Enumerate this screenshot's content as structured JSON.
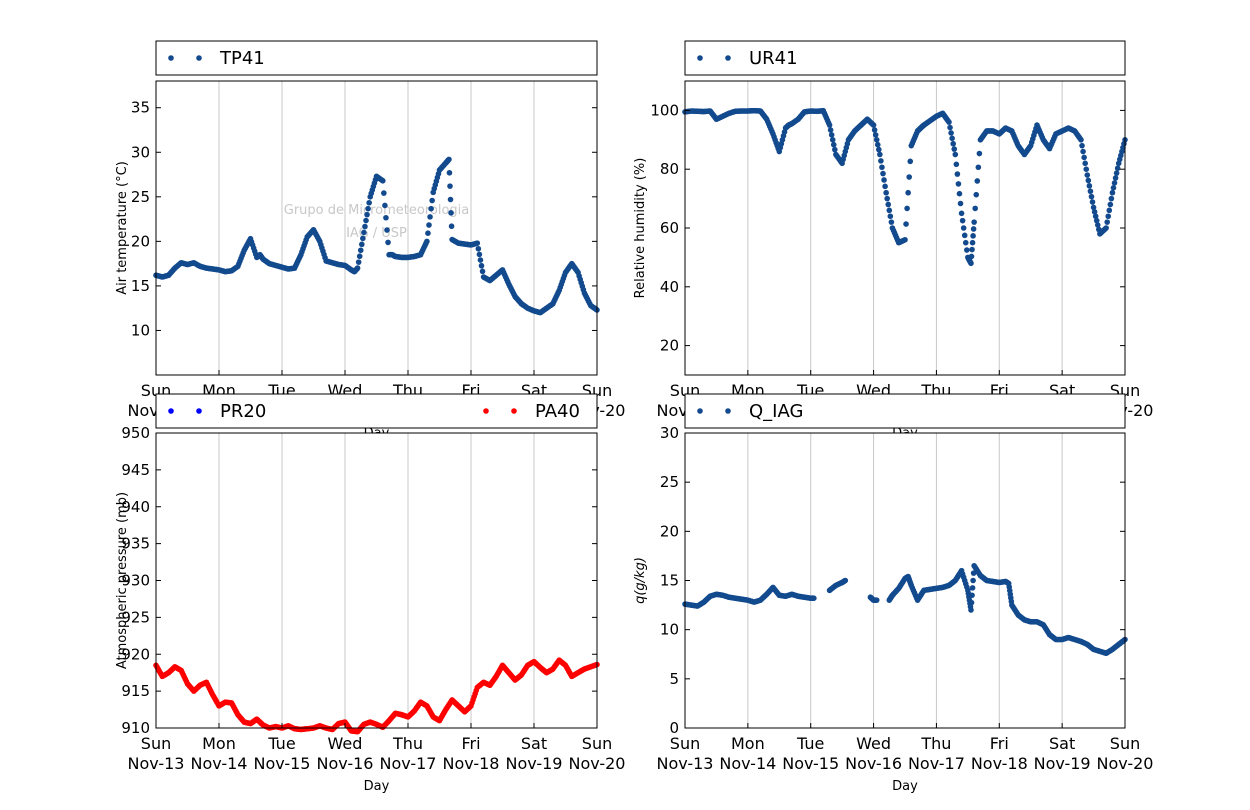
{
  "days": [
    "Sun",
    "Mon",
    "Tue",
    "Wed",
    "Thu",
    "Fri",
    "Sat",
    "Sun"
  ],
  "dates": [
    "Nov-13",
    "Nov-14",
    "Nov-15",
    "Nov-16",
    "Nov-17",
    "Nov-18",
    "Nov-19",
    "Nov-20"
  ],
  "xlabel": "Day",
  "watermark": [
    "Grupo de Micrometeorologia",
    "IAG / USP"
  ],
  "colors": {
    "blue_series": "#134a8e",
    "pr20": "#0000ff",
    "pa40": "#ff0000",
    "grid": "#c8c8c8"
  },
  "chart_data": [
    {
      "type": "scatter",
      "legend": [
        "TP41"
      ],
      "ylabel": "Air temperature (°C)",
      "yticks": [
        10,
        15,
        20,
        25,
        30,
        35
      ],
      "ylim": [
        5,
        38
      ],
      "xlim": [
        "2016-11-13",
        "2016-11-20"
      ],
      "series": [
        {
          "name": "TP41",
          "color": "#134a8e",
          "x": [
            0,
            0.1,
            0.2,
            0.3,
            0.4,
            0.5,
            0.6,
            0.7,
            0.8,
            0.9,
            1.0,
            1.1,
            1.2,
            1.3,
            1.4,
            1.5,
            1.6,
            1.65,
            1.7,
            1.8,
            1.9,
            2.0,
            2.1,
            2.2,
            2.3,
            2.4,
            2.5,
            2.6,
            2.7,
            2.8,
            2.9,
            3.0,
            3.1,
            3.15,
            3.2,
            3.3,
            3.4,
            3.5,
            3.6,
            3.7,
            3.75,
            3.8,
            3.9,
            4.0,
            4.1,
            4.2,
            4.3,
            4.4,
            4.5,
            4.6,
            4.65,
            4.7,
            4.8,
            4.9,
            5.0,
            5.1,
            5.2,
            5.3,
            5.4,
            5.5,
            5.6,
            5.7,
            5.8,
            5.9,
            6.0,
            6.1,
            6.2,
            6.3,
            6.4,
            6.5,
            6.6,
            6.7,
            6.8,
            6.9,
            7.0
          ],
          "y": [
            16.2,
            16.0,
            16.2,
            17.0,
            17.6,
            17.4,
            17.6,
            17.2,
            17.0,
            16.9,
            16.8,
            16.6,
            16.7,
            17.2,
            19.0,
            20.3,
            18.2,
            18.5,
            18.0,
            17.5,
            17.3,
            17.1,
            16.9,
            17.0,
            18.5,
            20.5,
            21.3,
            20.0,
            17.8,
            17.6,
            17.4,
            17.3,
            16.8,
            16.6,
            17.0,
            21.0,
            25.0,
            27.3,
            26.8,
            18.5,
            18.5,
            18.3,
            18.2,
            18.2,
            18.3,
            18.5,
            20.0,
            25.5,
            28.0,
            28.8,
            29.2,
            20.2,
            19.8,
            19.7,
            19.6,
            19.8,
            16.0,
            15.6,
            16.2,
            16.8,
            15.2,
            13.8,
            13.0,
            12.5,
            12.2,
            12.0,
            12.5,
            13.0,
            14.5,
            16.5,
            17.5,
            16.5,
            14.2,
            12.8,
            12.3
          ]
        }
      ]
    },
    {
      "type": "scatter",
      "legend": [
        "UR41"
      ],
      "ylabel": "Relative humidity (%)",
      "yticks": [
        20,
        40,
        60,
        80,
        100
      ],
      "ylim": [
        10,
        110
      ],
      "xlim": [
        "2016-11-13",
        "2016-11-20"
      ],
      "series": [
        {
          "name": "UR41",
          "color": "#134a8e",
          "x": [
            0,
            0.1,
            0.2,
            0.3,
            0.4,
            0.5,
            0.6,
            0.7,
            0.8,
            0.9,
            1.0,
            1.1,
            1.2,
            1.3,
            1.4,
            1.5,
            1.6,
            1.65,
            1.7,
            1.8,
            1.9,
            2.0,
            2.1,
            2.2,
            2.3,
            2.4,
            2.5,
            2.6,
            2.7,
            2.8,
            2.9,
            3.0,
            3.1,
            3.2,
            3.3,
            3.4,
            3.5,
            3.6,
            3.7,
            3.75,
            3.8,
            3.9,
            4.0,
            4.1,
            4.2,
            4.3,
            4.4,
            4.5,
            4.55,
            4.6,
            4.7,
            4.8,
            4.9,
            5.0,
            5.1,
            5.2,
            5.3,
            5.4,
            5.5,
            5.6,
            5.7,
            5.8,
            5.9,
            6.0,
            6.1,
            6.2,
            6.3,
            6.4,
            6.5,
            6.6,
            6.7,
            6.8,
            6.9,
            7.0
          ],
          "y": [
            99.5,
            99.8,
            99.7,
            99.6,
            99.8,
            97.0,
            98.0,
            99.0,
            99.7,
            99.8,
            99.8,
            99.9,
            99.8,
            97.0,
            92.0,
            86.0,
            94.0,
            95.0,
            95.5,
            97.0,
            99.5,
            99.8,
            99.7,
            99.9,
            95.0,
            85.0,
            82.0,
            90.0,
            93.0,
            95.0,
            97.0,
            95.0,
            85.0,
            72.0,
            60.0,
            55.0,
            56.0,
            88.0,
            93.0,
            94.0,
            95.0,
            96.5,
            98.0,
            99.0,
            96.0,
            85.0,
            65.0,
            50.0,
            48.0,
            62.0,
            90.0,
            93.0,
            93.0,
            92.0,
            94.0,
            93.0,
            88.0,
            85.0,
            88.0,
            95.0,
            90.0,
            87.0,
            92.0,
            93.0,
            94.0,
            93.0,
            90.0,
            78.0,
            67.0,
            58.0,
            60.0,
            72.0,
            82.0,
            90.0
          ]
        }
      ]
    },
    {
      "type": "scatter",
      "legend": [
        "PR20",
        "PA40"
      ],
      "ylabel": "Atmospheric pressure (mb)",
      "yticks": [
        910,
        915,
        920,
        925,
        930,
        935,
        940,
        945,
        950
      ],
      "ylim": [
        910,
        950
      ],
      "xlim": [
        "2016-11-13",
        "2016-11-20"
      ],
      "series": [
        {
          "name": "PR20",
          "color": "#0000ff",
          "x": [],
          "y": []
        },
        {
          "name": "PA40",
          "color": "#ff0000",
          "x": [
            0,
            0.1,
            0.2,
            0.3,
            0.4,
            0.5,
            0.6,
            0.7,
            0.8,
            0.9,
            1.0,
            1.1,
            1.2,
            1.3,
            1.4,
            1.5,
            1.6,
            1.7,
            1.8,
            1.9,
            2.0,
            2.1,
            2.2,
            2.3,
            2.4,
            2.5,
            2.6,
            2.7,
            2.8,
            2.9,
            3.0,
            3.1,
            3.2,
            3.3,
            3.4,
            3.5,
            3.6,
            3.7,
            3.8,
            3.9,
            4.0,
            4.1,
            4.2,
            4.3,
            4.4,
            4.5,
            4.6,
            4.7,
            4.8,
            4.9,
            5.0,
            5.1,
            5.2,
            5.3,
            5.4,
            5.5,
            5.6,
            5.7,
            5.8,
            5.9,
            6.0,
            6.1,
            6.2,
            6.3,
            6.4,
            6.5,
            6.6,
            6.7,
            6.8,
            6.9,
            7.0
          ],
          "y": [
            918.5,
            917.0,
            917.5,
            918.3,
            917.8,
            916.0,
            915.0,
            915.8,
            916.2,
            914.5,
            913.0,
            913.5,
            913.4,
            911.8,
            910.8,
            910.6,
            911.2,
            910.4,
            910.0,
            910.2,
            910.0,
            910.3,
            909.9,
            909.8,
            909.9,
            910.0,
            910.3,
            910.0,
            909.8,
            910.6,
            910.8,
            909.6,
            909.5,
            910.5,
            910.8,
            910.5,
            910.1,
            911.0,
            912.0,
            911.8,
            911.5,
            912.3,
            913.5,
            913.0,
            911.5,
            911.0,
            912.5,
            913.8,
            913.0,
            912.2,
            913.0,
            915.5,
            916.2,
            915.8,
            917.0,
            918.5,
            917.5,
            916.5,
            917.2,
            918.5,
            919.0,
            918.2,
            917.5,
            918.0,
            919.2,
            918.5,
            917.0,
            917.5,
            918.0,
            918.3,
            918.6
          ]
        }
      ]
    },
    {
      "type": "scatter",
      "legend": [
        "Q_IAG"
      ],
      "ylabel": "q(g/kg)",
      "yticks": [
        0,
        5,
        10,
        15,
        20,
        25,
        30
      ],
      "ylim": [
        0,
        30
      ],
      "xlim": [
        "2016-11-13",
        "2016-11-20"
      ],
      "series": [
        {
          "name": "Q_IAG",
          "color": "#134a8e",
          "x": [
            0,
            0.1,
            0.2,
            0.3,
            0.4,
            0.5,
            0.6,
            0.7,
            0.8,
            0.9,
            1.0,
            1.1,
            1.2,
            1.3,
            1.4,
            1.5,
            1.6,
            1.7,
            1.8,
            1.9,
            2.0,
            2.05,
            2.3,
            2.4,
            2.5,
            2.55,
            2.95,
            3.0,
            3.05,
            3.25,
            3.3,
            3.4,
            3.5,
            3.55,
            3.6,
            3.7,
            3.8,
            3.9,
            4.0,
            4.1,
            4.2,
            4.3,
            4.4,
            4.5,
            4.55,
            4.6,
            4.7,
            4.8,
            4.9,
            5.0,
            5.1,
            5.15,
            5.2,
            5.3,
            5.4,
            5.5,
            5.6,
            5.7,
            5.8,
            5.9,
            6.0,
            6.1,
            6.2,
            6.3,
            6.4,
            6.5,
            6.6,
            6.7,
            6.8,
            6.9,
            7.0
          ],
          "y": [
            12.6,
            12.5,
            12.4,
            12.8,
            13.4,
            13.6,
            13.5,
            13.3,
            13.2,
            13.1,
            13.0,
            12.8,
            13.0,
            13.6,
            14.3,
            13.5,
            13.4,
            13.6,
            13.4,
            13.3,
            13.2,
            13.2,
            14.0,
            14.5,
            14.8,
            15.0,
            13.3,
            13.0,
            13.0,
            13.0,
            13.5,
            14.2,
            15.2,
            15.4,
            14.5,
            13.0,
            14.0,
            14.1,
            14.2,
            14.3,
            14.5,
            15.0,
            16.0,
            14.0,
            12.0,
            16.5,
            15.5,
            15.0,
            14.9,
            14.8,
            14.9,
            14.7,
            12.5,
            11.5,
            11.0,
            10.8,
            10.8,
            10.5,
            9.5,
            9.0,
            9.0,
            9.2,
            9.0,
            8.8,
            8.5,
            8.0,
            7.8,
            7.6,
            8.0,
            8.5,
            9.0
          ]
        }
      ]
    }
  ]
}
